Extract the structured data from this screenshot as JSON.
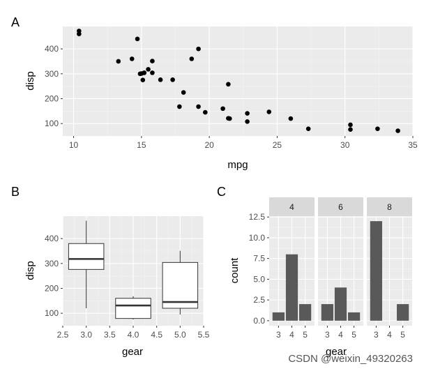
{
  "chart_data": [
    {
      "type": "scatter",
      "tag": "A",
      "xlabel": "mpg",
      "ylabel": "disp",
      "xlim": [
        9.2,
        35
      ],
      "ylim": [
        50,
        490
      ],
      "xticks": [
        10,
        15,
        20,
        25,
        30,
        35
      ],
      "yticks": [
        100,
        200,
        300,
        400
      ],
      "points": [
        [
          10.4,
          472
        ],
        [
          10.4,
          460
        ],
        [
          13.3,
          350
        ],
        [
          14.3,
          360
        ],
        [
          14.7,
          440
        ],
        [
          15.0,
          301
        ],
        [
          15.2,
          304
        ],
        [
          15.2,
          304
        ],
        [
          15.5,
          318
        ],
        [
          15.8,
          351
        ],
        [
          15.8,
          304
        ],
        [
          16.4,
          276
        ],
        [
          17.3,
          276
        ],
        [
          18.1,
          225
        ],
        [
          17.8,
          168
        ],
        [
          18.7,
          360
        ],
        [
          19.2,
          400
        ],
        [
          19.2,
          168
        ],
        [
          19.7,
          145
        ],
        [
          21.0,
          160
        ],
        [
          21.4,
          258
        ],
        [
          21.4,
          121
        ],
        [
          21.5,
          120
        ],
        [
          22.8,
          108
        ],
        [
          22.8,
          141
        ],
        [
          24.4,
          147
        ],
        [
          26.0,
          120
        ],
        [
          27.3,
          79
        ],
        [
          30.4,
          95
        ],
        [
          30.4,
          76
        ],
        [
          32.4,
          79
        ],
        [
          33.9,
          71
        ],
        [
          15.1,
          275
        ],
        [
          14.9,
          300
        ]
      ]
    },
    {
      "type": "box",
      "tag": "B",
      "xlabel": "gear",
      "ylabel": "disp",
      "xlim": [
        2.5,
        5.5
      ],
      "ylim": [
        50,
        490
      ],
      "xticks": [
        "2.5",
        "3.0",
        "3.5",
        "4.0",
        "4.5",
        "5.0",
        "5.5"
      ],
      "yticks": [
        100,
        200,
        300,
        400
      ],
      "boxes": [
        {
          "x": 3,
          "min": 120,
          "q1": 276,
          "median": 318,
          "q3": 380,
          "max": 472
        },
        {
          "x": 4,
          "min": 75,
          "q1": 79,
          "median": 131,
          "q3": 160,
          "max": 168
        },
        {
          "x": 5,
          "min": 95,
          "q1": 120,
          "median": 145,
          "q3": 304,
          "max": 351
        }
      ]
    },
    {
      "type": "bar",
      "tag": "C",
      "xlabel": "gear",
      "ylabel": "count",
      "ylim": [
        -0.6,
        12.6
      ],
      "yticks": [
        "0.0",
        "2.5",
        "5.0",
        "7.5",
        "10.0",
        "12.5"
      ],
      "categories": [
        "3",
        "4",
        "5"
      ],
      "facets": [
        {
          "label": "4",
          "values": [
            1,
            8,
            2
          ]
        },
        {
          "label": "6",
          "values": [
            2,
            4,
            1
          ]
        },
        {
          "label": "8",
          "values": [
            12,
            0,
            2
          ]
        }
      ]
    }
  ],
  "watermark": "CSDN @weixin_49320263",
  "colors": {
    "panel": "#ebebeb",
    "grid_major": "#ffffff",
    "grid_minor": "#f5f5f5",
    "bar": "#595959",
    "point": "#000000",
    "strip": "#d9d9d9"
  }
}
